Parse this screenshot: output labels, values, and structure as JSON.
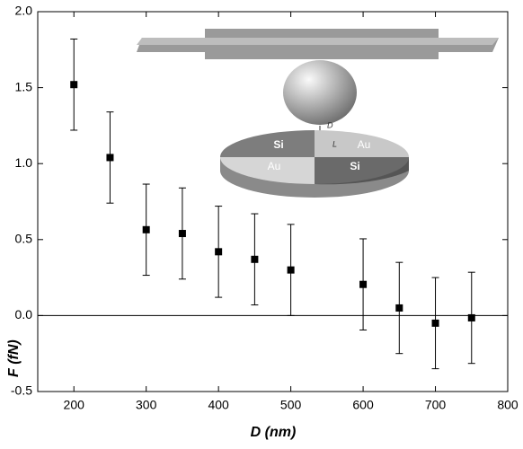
{
  "chart_data": {
    "type": "scatter",
    "x_label": "D (nm)",
    "y_label": "F (fN)",
    "x": [
      200,
      250,
      300,
      350,
      400,
      450,
      500,
      600,
      650,
      700,
      750
    ],
    "values": [
      1.52,
      1.04,
      0.565,
      0.54,
      0.42,
      0.37,
      0.3,
      0.205,
      0.05,
      -0.05,
      -0.015
    ],
    "errors": [
      0.3,
      0.3,
      0.3,
      0.3,
      0.3,
      0.3,
      0.3,
      0.3,
      0.3,
      0.3,
      0.3
    ],
    "color": "#000000",
    "hline": 0,
    "xlim": [
      150,
      800
    ],
    "xticks": [
      200,
      300,
      400,
      500,
      600,
      700,
      800
    ],
    "ylim": [
      -0.5,
      2.0
    ],
    "yticks": [
      {
        "value": -0.5,
        "label": "-0.5"
      },
      {
        "value": 0,
        "label": "0.0"
      },
      0.5,
      {
        "value": 1,
        "label": "1.0"
      },
      1.5,
      {
        "value": 2,
        "label": "2.0"
      }
    ],
    "inset_labels": [
      "Si",
      "Au",
      "Au",
      "Si",
      "D",
      "L"
    ]
  }
}
